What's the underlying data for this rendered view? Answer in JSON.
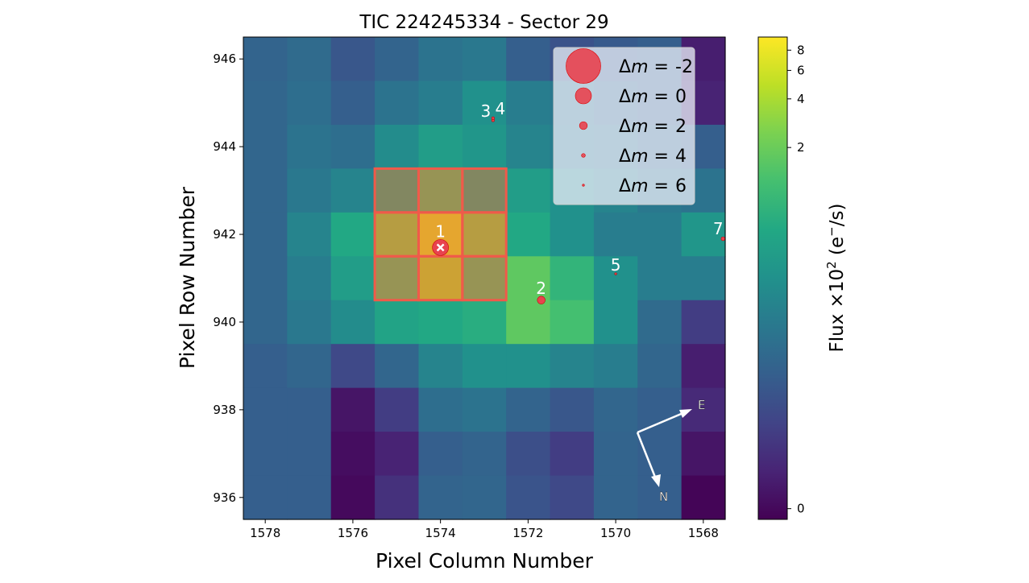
{
  "chart_data": {
    "type": "heatmap",
    "title": "TIC 224245334 - Sector 29",
    "xlabel": "Pixel Column Number",
    "ylabel": "Pixel Row Number",
    "x_inverted": true,
    "xlim": [
      1578.5,
      1567.5
    ],
    "ylim": [
      935.5,
      946.5
    ],
    "x_ticks": [
      1578,
      1576,
      1574,
      1572,
      1570,
      1568
    ],
    "y_ticks": [
      936,
      938,
      940,
      942,
      944,
      946
    ],
    "columns": [
      1578,
      1577,
      1576,
      1575,
      1574,
      1573,
      1572,
      1571,
      1570,
      1569,
      1568
    ],
    "rows": [
      946,
      945,
      944,
      943,
      942,
      941,
      940,
      939,
      938,
      937,
      936
    ],
    "flux": [
      [
        0.081,
        0.1,
        0.054,
        0.081,
        0.127,
        0.148,
        0.069,
        0.046,
        0.059,
        0.069,
        0.007
      ],
      [
        0.087,
        0.11,
        0.069,
        0.127,
        0.171,
        0.303,
        0.171,
        0.148,
        0.1,
        0.069,
        0.009
      ],
      [
        0.087,
        0.127,
        0.11,
        0.263,
        0.432,
        0.349,
        0.212,
        0.171,
        0.148,
        0.1,
        0.069
      ],
      [
        0.087,
        0.148,
        0.212,
        0.7,
        1.41,
        0.7,
        0.432,
        0.303,
        0.212,
        0.148,
        0.127
      ],
      [
        0.087,
        0.212,
        0.612,
        2.8,
        6.85,
        2.8,
        0.612,
        0.303,
        0.171,
        0.171,
        0.349
      ],
      [
        0.087,
        0.171,
        0.432,
        1.41,
        4.24,
        1.41,
        1.73,
        0.867,
        0.303,
        0.171,
        0.171
      ],
      [
        0.087,
        0.148,
        0.263,
        0.532,
        0.612,
        0.704,
        1.73,
        1.225,
        0.303,
        0.1,
        0.024
      ],
      [
        0.069,
        0.087,
        0.035,
        0.087,
        0.212,
        0.303,
        0.303,
        0.212,
        0.171,
        0.087,
        0.007
      ],
      [
        0.069,
        0.069,
        0.004,
        0.024,
        0.11,
        0.127,
        0.081,
        0.054,
        0.087,
        0.069,
        0.012
      ],
      [
        0.069,
        0.069,
        0.002,
        0.009,
        0.069,
        0.081,
        0.042,
        0.024,
        0.081,
        0.069,
        0.004
      ],
      [
        0.069,
        0.069,
        0.001,
        0.016,
        0.081,
        0.087,
        0.05,
        0.035,
        0.081,
        0.069,
        0.0
      ]
    ],
    "aperture": {
      "columns": [
        1575,
        1574,
        1573
      ],
      "rows": [
        943,
        942,
        941
      ],
      "color": "#f05a4a"
    },
    "stars": [
      {
        "label": "1",
        "column": 1574.0,
        "row": 941.7,
        "delta_m": 0,
        "target": true
      },
      {
        "label": "2",
        "column": 1571.7,
        "row": 940.5,
        "delta_m": 2
      },
      {
        "label": "3",
        "column": 1572.8,
        "row": 944.6,
        "delta_m": 5
      },
      {
        "label": "4",
        "column": 1572.8,
        "row": 944.65,
        "delta_m": 5
      },
      {
        "label": "5",
        "column": 1570.0,
        "row": 941.1,
        "delta_m": 6
      },
      {
        "label": "7",
        "column": 1567.55,
        "row": 941.9,
        "delta_m": 4
      }
    ],
    "star_color": "#e8434f",
    "legend": {
      "placement": "top-right",
      "entries": [
        {
          "prefix": "Δ",
          "var": "m",
          "eq": " =  ",
          "value": "-2",
          "delta_m": -2
        },
        {
          "prefix": "Δ",
          "var": "m",
          "eq": " =  ",
          "value": "0",
          "delta_m": 0
        },
        {
          "prefix": "Δ",
          "var": "m",
          "eq": " =  ",
          "value": "2",
          "delta_m": 2
        },
        {
          "prefix": "Δ",
          "var": "m",
          "eq": " =  ",
          "value": "4",
          "delta_m": 4
        },
        {
          "prefix": "Δ",
          "var": "m",
          "eq": " =  ",
          "value": "6",
          "delta_m": 6
        }
      ]
    },
    "compass": {
      "east": "E",
      "north": "N"
    },
    "colorbar": {
      "colormap": "viridis",
      "scale": "log-like",
      "range": [
        0,
        9.6
      ],
      "ticks": [
        0,
        2,
        4,
        6,
        8
      ],
      "tick_labels": [
        "0",
        "2",
        "4",
        "6",
        "8"
      ],
      "label_main": "Flux ×10",
      "label_sup": "2",
      "label_unit_open": " (e",
      "label_unit_sup": "−",
      "label_unit_close": "/s)"
    },
    "grid": false
  }
}
